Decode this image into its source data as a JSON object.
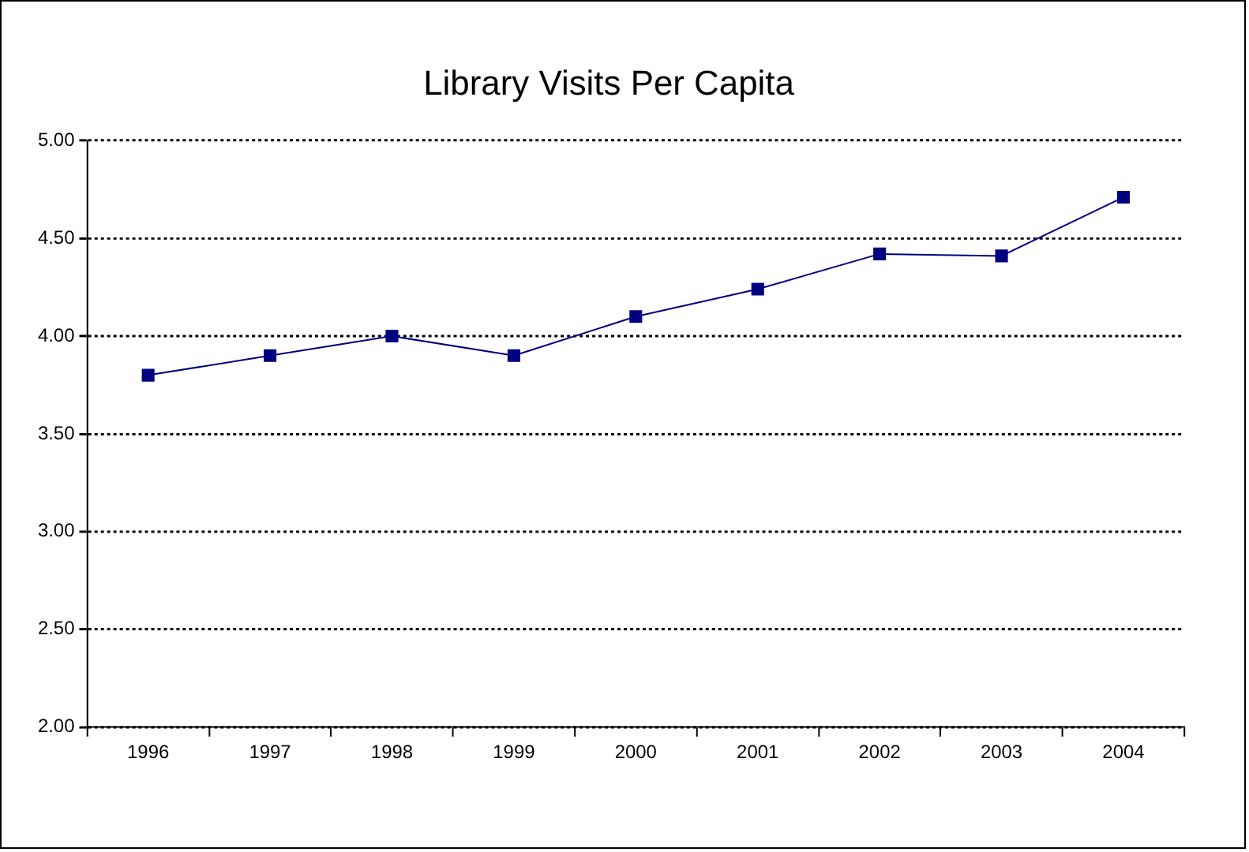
{
  "chart_data": {
    "type": "line",
    "title": "Library Visits Per Capita",
    "categories": [
      "1996",
      "1997",
      "1998",
      "1999",
      "2000",
      "2001",
      "2002",
      "2003",
      "2004"
    ],
    "series": [
      {
        "color": "#000080",
        "values": [
          3.8,
          3.9,
          4.0,
          3.9,
          4.1,
          4.24,
          4.42,
          4.41,
          4.71
        ]
      }
    ],
    "ylim": [
      2,
      5
    ],
    "yticks": [
      {
        "value": 2,
        "label": "2.00"
      },
      {
        "value": 2.5,
        "label": "2.50"
      },
      {
        "value": 3,
        "label": "3.00"
      },
      {
        "value": 3.5,
        "label": "3.50"
      },
      {
        "value": 4,
        "label": "4.00"
      },
      {
        "value": 4.5,
        "label": "4.50"
      },
      {
        "value": 5,
        "label": "5.00"
      }
    ],
    "grid": "y",
    "legend": false,
    "marker": "square",
    "line_style": "solid"
  }
}
